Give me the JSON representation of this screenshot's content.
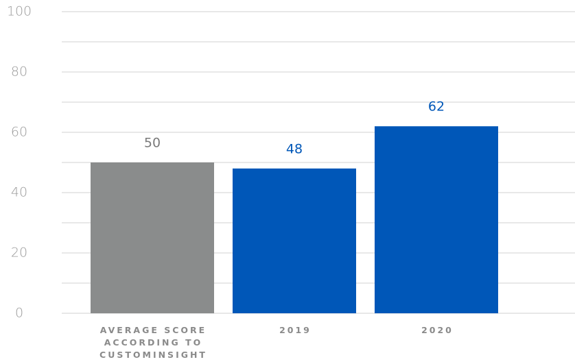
{
  "chart_data": {
    "type": "bar",
    "categories": [
      "AVERAGE SCORE ACCORDING TO CUSTOMINSIGHT",
      "2019",
      "2020"
    ],
    "values": [
      50,
      48,
      62
    ],
    "colors": [
      "#8a8c8c",
      "#0057b8",
      "#0057b8"
    ],
    "ylim": [
      0,
      100
    ],
    "yticks": [
      0,
      20,
      40,
      60,
      80,
      100
    ],
    "minor_yticks": [
      10,
      30,
      50,
      70,
      90
    ],
    "grid": true
  }
}
